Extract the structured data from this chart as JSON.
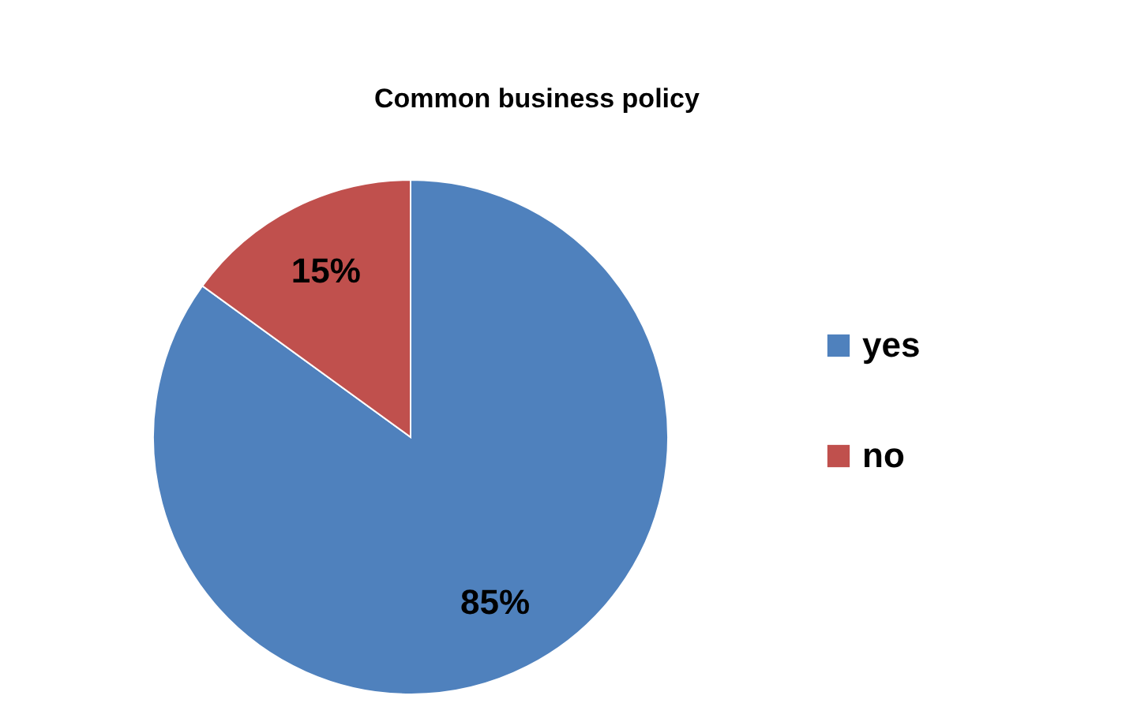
{
  "chart_data": {
    "type": "pie",
    "title": "Common business policy",
    "categories": [
      "yes",
      "no"
    ],
    "values": [
      85,
      15
    ],
    "colors": [
      "#4f81bd",
      "#c0504d"
    ],
    "value_labels": [
      "85%",
      "15%"
    ],
    "legend": "right"
  }
}
